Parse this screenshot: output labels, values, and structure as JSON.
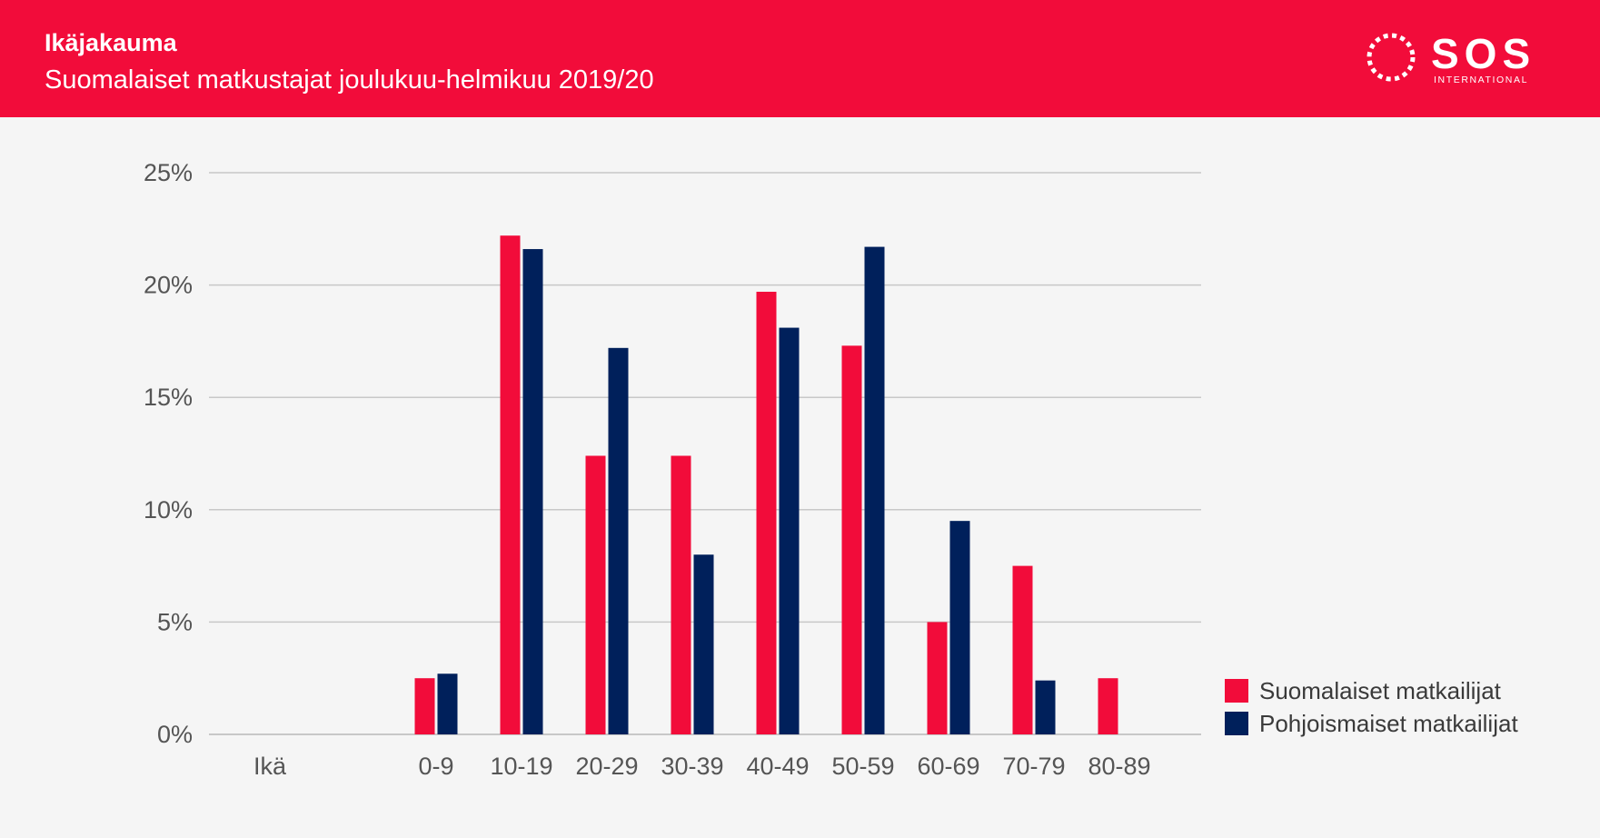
{
  "header": {
    "title": "Ikäjakauma",
    "subtitle": "Suomalaiset matkustajat joulukuu-helmikuu 2019/20",
    "logo_text": "SOS",
    "logo_subtext": "INTERNATIONAL"
  },
  "colors": {
    "header_bg": "#f20c3a",
    "series_red": "#f20c3a",
    "series_navy": "#00205b",
    "grid": "#c8c8c8",
    "axis_text": "#555555"
  },
  "chart_data": {
    "type": "bar",
    "title": "Ikäjakauma",
    "subtitle": "Suomalaiset matkustajat joulukuu-helmikuu 2019/20",
    "xlabel": "Ikä",
    "ylabel": "",
    "ylim": [
      0,
      25
    ],
    "yticks": [
      "0%",
      "5%",
      "10%",
      "15%",
      "20%",
      "25%"
    ],
    "grid": true,
    "legend_position": "right",
    "categories": [
      "0-9",
      "10-19",
      "20-29",
      "30-39",
      "40-49",
      "50-59",
      "60-69",
      "70-79",
      "80-89"
    ],
    "series": [
      {
        "name": "Suomalaiset matkailijat",
        "color": "#f20c3a",
        "values": [
          2.5,
          22.2,
          12.4,
          12.4,
          19.7,
          17.3,
          5.0,
          7.5,
          2.5
        ]
      },
      {
        "name": "Pohjoismaiset matkailijat",
        "color": "#00205b",
        "values": [
          2.7,
          21.6,
          17.2,
          8.0,
          18.1,
          21.7,
          9.5,
          2.4,
          0
        ]
      }
    ]
  }
}
